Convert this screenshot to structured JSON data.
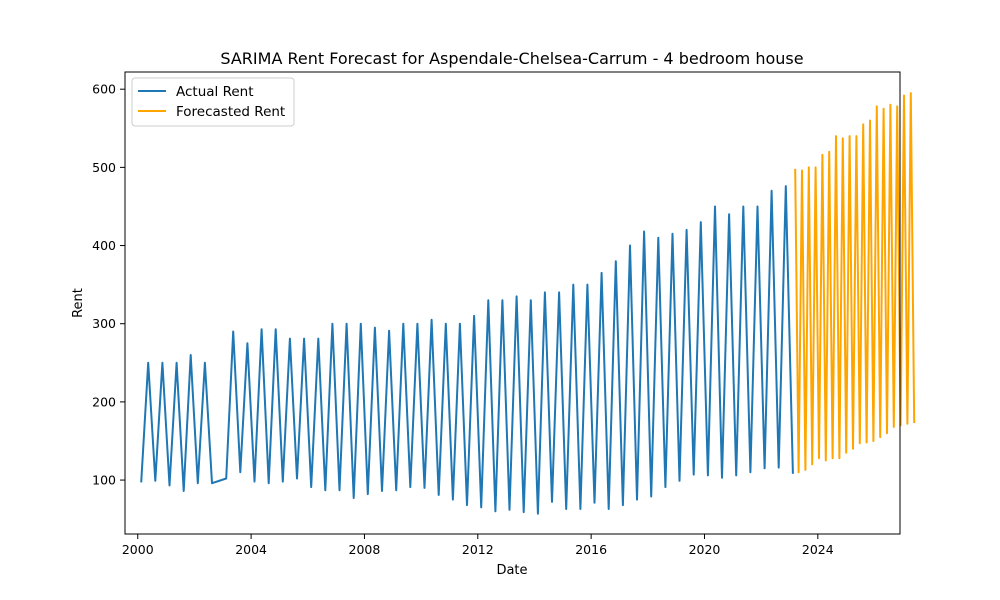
{
  "chart_data": {
    "type": "line",
    "title": "SARIMA Rent Forecast for Aspendale-Chelsea-Carrum - 4 bedroom house",
    "xlabel": "Date",
    "ylabel": "Rent",
    "xlim": [
      1999.55,
      2026.9
    ],
    "ylim": [
      31,
      622
    ],
    "xticks": [
      2000,
      2004,
      2008,
      2012,
      2016,
      2020,
      2024
    ],
    "yticks": [
      100,
      200,
      300,
      400,
      500,
      600
    ],
    "grid": false,
    "legend_position": "top-left",
    "series": [
      {
        "name": "Actual Rent",
        "color": "#1f77b4",
        "points": [
          [
            2000.12,
            97
          ],
          [
            2000.37,
            250
          ],
          [
            2000.62,
            99
          ],
          [
            2000.87,
            250
          ],
          [
            2001.12,
            93
          ],
          [
            2001.37,
            250
          ],
          [
            2001.62,
            86
          ],
          [
            2001.87,
            260
          ],
          [
            2002.12,
            96
          ],
          [
            2002.37,
            250
          ],
          [
            2002.62,
            96
          ],
          [
            2003.12,
            102
          ],
          [
            2003.37,
            290
          ],
          [
            2003.62,
            110
          ],
          [
            2003.87,
            275
          ],
          [
            2004.12,
            98
          ],
          [
            2004.37,
            293
          ],
          [
            2004.62,
            96
          ],
          [
            2004.87,
            293
          ],
          [
            2005.12,
            98
          ],
          [
            2005.37,
            281
          ],
          [
            2005.62,
            102
          ],
          [
            2005.87,
            281
          ],
          [
            2006.12,
            91
          ],
          [
            2006.37,
            281
          ],
          [
            2006.62,
            87
          ],
          [
            2006.87,
            300
          ],
          [
            2007.12,
            87
          ],
          [
            2007.37,
            300
          ],
          [
            2007.62,
            77
          ],
          [
            2007.87,
            300
          ],
          [
            2008.12,
            82
          ],
          [
            2008.37,
            295
          ],
          [
            2008.62,
            86
          ],
          [
            2008.87,
            291
          ],
          [
            2009.12,
            87
          ],
          [
            2009.37,
            300
          ],
          [
            2009.62,
            91
          ],
          [
            2009.87,
            300
          ],
          [
            2010.12,
            90
          ],
          [
            2010.37,
            305
          ],
          [
            2010.62,
            81
          ],
          [
            2010.87,
            300
          ],
          [
            2011.12,
            75
          ],
          [
            2011.37,
            300
          ],
          [
            2011.62,
            68
          ],
          [
            2011.87,
            310
          ],
          [
            2012.12,
            65
          ],
          [
            2012.37,
            330
          ],
          [
            2012.62,
            60
          ],
          [
            2012.87,
            330
          ],
          [
            2013.12,
            62
          ],
          [
            2013.37,
            335
          ],
          [
            2013.62,
            59
          ],
          [
            2013.87,
            330
          ],
          [
            2014.12,
            57
          ],
          [
            2014.37,
            340
          ],
          [
            2014.62,
            72
          ],
          [
            2014.87,
            340
          ],
          [
            2015.12,
            63
          ],
          [
            2015.37,
            350
          ],
          [
            2015.62,
            63
          ],
          [
            2015.87,
            350
          ],
          [
            2016.12,
            71
          ],
          [
            2016.37,
            365
          ],
          [
            2016.62,
            63
          ],
          [
            2016.87,
            380
          ],
          [
            2017.12,
            68
          ],
          [
            2017.37,
            400
          ],
          [
            2017.62,
            75
          ],
          [
            2017.87,
            418
          ],
          [
            2018.12,
            79
          ],
          [
            2018.37,
            410
          ],
          [
            2018.62,
            91
          ],
          [
            2018.87,
            415
          ],
          [
            2019.12,
            99
          ],
          [
            2019.37,
            420
          ],
          [
            2019.62,
            107
          ],
          [
            2019.87,
            430
          ],
          [
            2020.12,
            106
          ],
          [
            2020.37,
            450
          ],
          [
            2020.62,
            103
          ],
          [
            2020.87,
            440
          ],
          [
            2021.12,
            106
          ],
          [
            2021.37,
            450
          ],
          [
            2021.62,
            110
          ],
          [
            2021.87,
            450
          ],
          [
            2022.12,
            115
          ],
          [
            2022.37,
            470
          ],
          [
            2022.62,
            116
          ],
          [
            2022.87,
            476
          ],
          [
            2023.12,
            108
          ]
        ]
      },
      {
        "name": "Forecasted Rent",
        "color": "#ffa500",
        "points": [
          [
            2023.2,
            498
          ],
          [
            2023.32,
            110
          ],
          [
            2023.44,
            496
          ],
          [
            2023.56,
            113
          ],
          [
            2023.68,
            500
          ],
          [
            2023.8,
            120
          ],
          [
            2023.92,
            500
          ],
          [
            2024.04,
            128
          ],
          [
            2024.16,
            516
          ],
          [
            2024.28,
            125
          ],
          [
            2024.4,
            520
          ],
          [
            2024.52,
            128
          ],
          [
            2024.64,
            540
          ],
          [
            2024.76,
            128
          ],
          [
            2024.88,
            537
          ],
          [
            2025.0,
            135
          ],
          [
            2025.12,
            540
          ],
          [
            2025.24,
            140
          ],
          [
            2025.36,
            540
          ],
          [
            2025.48,
            147
          ],
          [
            2025.6,
            555
          ],
          [
            2025.72,
            148
          ],
          [
            2025.84,
            560
          ],
          [
            2025.96,
            150
          ],
          [
            2026.08,
            578
          ],
          [
            2026.2,
            155
          ],
          [
            2026.32,
            575
          ],
          [
            2026.44,
            160
          ],
          [
            2026.56,
            580
          ],
          [
            2026.68,
            168
          ],
          [
            2026.8,
            578
          ],
          [
            2026.92,
            170
          ],
          [
            2027.04,
            592
          ],
          [
            2027.16,
            172
          ],
          [
            2027.28,
            595
          ],
          [
            2027.4,
            173
          ]
        ]
      }
    ]
  },
  "legend": {
    "actual_label": "Actual Rent",
    "forecast_label": "Forecasted Rent"
  }
}
